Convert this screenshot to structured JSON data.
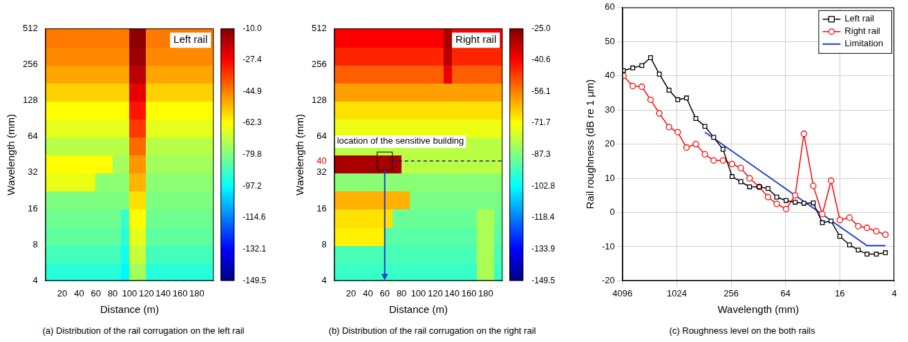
{
  "chart_data": [
    {
      "type": "heatmap",
      "title": "Left rail",
      "caption": "(a) Distribution of the rail corrugation on the left rail",
      "x_label": "Distance (m)",
      "y_label": "Wavelength (mm)",
      "log": "y",
      "xlim": [
        0,
        200
      ],
      "xticks": [
        20,
        40,
        60,
        80,
        100,
        120,
        140,
        160,
        180
      ],
      "ylim": [
        4,
        512
      ],
      "yticks": [
        4,
        8,
        16,
        32,
        64,
        128,
        256,
        512
      ],
      "x_bins": [
        0,
        10,
        20,
        30,
        40,
        50,
        60,
        70,
        80,
        90,
        100,
        110,
        120,
        130,
        140,
        150,
        160,
        170,
        180,
        190,
        200
      ],
      "y_bins": [
        4,
        5.66,
        8,
        11.31,
        16,
        22.63,
        32,
        45.25,
        64,
        90.51,
        128,
        181.02,
        256,
        362.04,
        512
      ],
      "cells": [
        [
          -92,
          -92,
          -92,
          -92,
          -92,
          -92,
          -92,
          -92,
          -92,
          -98,
          -75,
          -75,
          -92,
          -92,
          -92,
          -92,
          -92,
          -92,
          -92,
          -92
        ],
        [
          -88,
          -88,
          -88,
          -88,
          -88,
          -88,
          -88,
          -88,
          -88,
          -95,
          -70,
          -70,
          -88,
          -88,
          -88,
          -88,
          -88,
          -88,
          -88,
          -88
        ],
        [
          -84,
          -84,
          -84,
          -84,
          -84,
          -84,
          -84,
          -84,
          -84,
          -92,
          -66,
          -66,
          -84,
          -84,
          -84,
          -84,
          -84,
          -84,
          -84,
          -84
        ],
        [
          -82,
          -82,
          -82,
          -82,
          -82,
          -82,
          -82,
          -82,
          -82,
          -90,
          -62,
          -62,
          -82,
          -82,
          -82,
          -82,
          -82,
          -82,
          -82,
          -82
        ],
        [
          -80,
          -80,
          -80,
          -80,
          -80,
          -80,
          -80,
          -80,
          -80,
          -80,
          -58,
          -58,
          -80,
          -80,
          -80,
          -80,
          -80,
          -80,
          -80,
          -80
        ],
        [
          -65,
          -65,
          -65,
          -65,
          -65,
          -65,
          -78,
          -78,
          -78,
          -78,
          -52,
          -52,
          -78,
          -78,
          -78,
          -78,
          -78,
          -78,
          -78,
          -78
        ],
        [
          -62,
          -62,
          -62,
          -62,
          -62,
          -62,
          -62,
          -62,
          -75,
          -75,
          -48,
          -48,
          -75,
          -75,
          -75,
          -75,
          -75,
          -75,
          -75,
          -75
        ],
        [
          -72,
          -72,
          -72,
          -72,
          -72,
          -72,
          -72,
          -72,
          -72,
          -72,
          -42,
          -42,
          -72,
          -72,
          -72,
          -72,
          -72,
          -72,
          -72,
          -72
        ],
        [
          -66,
          -66,
          -66,
          -66,
          -66,
          -66,
          -66,
          -66,
          -66,
          -66,
          -35,
          -35,
          -66,
          -66,
          -66,
          -66,
          -66,
          -66,
          -66,
          -66
        ],
        [
          -62,
          -62,
          -62,
          -62,
          -62,
          -62,
          -62,
          -62,
          -62,
          -62,
          -30,
          -30,
          -62,
          -62,
          -62,
          -62,
          -62,
          -62,
          -62,
          -62
        ],
        [
          -56,
          -56,
          -56,
          -56,
          -56,
          -56,
          -56,
          -56,
          -56,
          -56,
          -24,
          -24,
          -56,
          -56,
          -56,
          -56,
          -56,
          -56,
          -56,
          -56
        ],
        [
          -50,
          -50,
          -50,
          -50,
          -50,
          -50,
          -50,
          -50,
          -50,
          -50,
          -18,
          -18,
          -50,
          -50,
          -50,
          -50,
          -50,
          -50,
          -50,
          -50
        ],
        [
          -46,
          -46,
          -46,
          -46,
          -46,
          -46,
          -46,
          -46,
          -46,
          -46,
          -14,
          -14,
          -46,
          -46,
          -46,
          -46,
          -46,
          -46,
          -46,
          -46
        ],
        [
          -44,
          -44,
          -44,
          -44,
          -44,
          -44,
          -44,
          -44,
          -44,
          -44,
          -12,
          -12,
          -44,
          -44,
          -44,
          -44,
          -44,
          -44,
          -44,
          -44
        ]
      ],
      "colorbar_range": [
        -149.5,
        -10
      ],
      "colorbar_ticks": [
        {
          "value": -10,
          "label": "-10.0"
        },
        -27.4,
        -44.9,
        -62.3,
        -79.8,
        -97.2,
        -114.6,
        -132.1,
        -149.5
      ]
    },
    {
      "type": "heatmap",
      "title": "Right rail",
      "caption": "(b) Distribution of the rail corrugation on the right rail",
      "x_label": "Distance (m)",
      "y_label": "Wavelength (mm)",
      "log": "y",
      "xlim": [
        0,
        200
      ],
      "xticks": [
        20,
        40,
        60,
        80,
        100,
        120,
        140,
        160,
        180
      ],
      "ylim": [
        4,
        512
      ],
      "yticks": [
        4,
        8,
        16,
        32,
        40,
        64,
        128,
        256,
        512
      ],
      "x_bins": [
        0,
        10,
        20,
        30,
        40,
        50,
        60,
        70,
        80,
        90,
        100,
        110,
        120,
        130,
        140,
        150,
        160,
        170,
        180,
        190,
        200
      ],
      "y_bins": [
        4,
        5.66,
        8,
        11.31,
        16,
        22.63,
        32,
        45.25,
        64,
        90.51,
        128,
        181.02,
        256,
        362.04,
        512
      ],
      "cells": [
        [
          -96,
          -96,
          -96,
          -96,
          -96,
          -96,
          -96,
          -96,
          -96,
          -96,
          -96,
          -96,
          -96,
          -96,
          -96,
          -96,
          -96,
          -82,
          -82,
          -96
        ],
        [
          -94,
          -94,
          -94,
          -94,
          -94,
          -94,
          -94,
          -94,
          -94,
          -94,
          -94,
          -94,
          -94,
          -94,
          -94,
          -94,
          -94,
          -82,
          -82,
          -94
        ],
        [
          -70,
          -70,
          -70,
          -70,
          -70,
          -70,
          -92,
          -92,
          -92,
          -92,
          -92,
          -92,
          -92,
          -92,
          -92,
          -92,
          -92,
          -82,
          -82,
          -92
        ],
        [
          -68,
          -68,
          -68,
          -68,
          -68,
          -68,
          -68,
          -90,
          -90,
          -90,
          -90,
          -90,
          -90,
          -90,
          -90,
          -90,
          -90,
          -82,
          -82,
          -90
        ],
        [
          -62,
          -62,
          -62,
          -62,
          -62,
          -62,
          -62,
          -62,
          -62,
          -88,
          -88,
          -88,
          -88,
          -88,
          -88,
          -88,
          -88,
          -88,
          -88,
          -88
        ],
        [
          -86,
          -86,
          -86,
          -86,
          -86,
          -86,
          -86,
          -86,
          -86,
          -86,
          -86,
          -86,
          -86,
          -86,
          -86,
          -86,
          -86,
          -86,
          -86,
          -86
        ],
        [
          -30,
          -30,
          -30,
          -30,
          -30,
          -30,
          -30,
          -30,
          -80,
          -80,
          -80,
          -80,
          -80,
          -80,
          -80,
          -80,
          -80,
          -80,
          -80,
          -80
        ],
        [
          -80,
          -80,
          -80,
          -80,
          -80,
          -80,
          -80,
          -80,
          -80,
          -80,
          -80,
          -80,
          -80,
          -80,
          -80,
          -80,
          -80,
          -80,
          -80,
          -80
        ],
        [
          -74,
          -74,
          -74,
          -74,
          -74,
          -74,
          -74,
          -74,
          -74,
          -74,
          -74,
          -74,
          -74,
          -74,
          -74,
          -74,
          -74,
          -74,
          -74,
          -74
        ],
        [
          -68,
          -68,
          -68,
          -68,
          -68,
          -68,
          -68,
          -68,
          -68,
          -68,
          -68,
          -68,
          -68,
          -68,
          -68,
          -68,
          -68,
          -68,
          -68,
          -68
        ],
        [
          -60,
          -60,
          -60,
          -60,
          -60,
          -60,
          -60,
          -60,
          -60,
          -60,
          -60,
          -60,
          -60,
          -60,
          -60,
          -60,
          -60,
          -60,
          -60,
          -60
        ],
        [
          -52,
          -52,
          -52,
          -52,
          -52,
          -52,
          -52,
          -52,
          -52,
          -52,
          -52,
          -52,
          -52,
          -38,
          -52,
          -52,
          -52,
          -52,
          -52,
          -52
        ],
        [
          -45,
          -45,
          -45,
          -45,
          -45,
          -45,
          -45,
          -45,
          -45,
          -45,
          -45,
          -45,
          -45,
          -32,
          -45,
          -45,
          -45,
          -45,
          -45,
          -45
        ],
        [
          -40,
          -40,
          -40,
          -40,
          -40,
          -40,
          -40,
          -40,
          -40,
          -40,
          -40,
          -40,
          -40,
          -30,
          -40,
          -40,
          -40,
          -40,
          -40,
          -40
        ]
      ],
      "colorbar_range": [
        -149.5,
        -25
      ],
      "colorbar_ticks": [
        {
          "value": -25,
          "label": "-25.0"
        },
        -40.6,
        -56.1,
        -71.7,
        -87.3,
        -102.8,
        -118.4,
        -133.9,
        -149.5
      ],
      "annotations": [
        {
          "text": "location of the sensitive building",
          "x": 60,
          "y": 40
        }
      ]
    },
    {
      "type": "line",
      "caption": "(c) Roughness level on the both rails",
      "x_label": "Wavelength (mm)",
      "y_label": "Rail roughness (dB re 1 μm)",
      "log": "x",
      "xlim": [
        4096,
        4
      ],
      "xticks": [
        4096,
        1024,
        256,
        64,
        16,
        4
      ],
      "ylim": [
        -20,
        60
      ],
      "yticks": [
        -20,
        -10,
        0,
        10,
        20,
        30,
        40,
        50,
        60
      ],
      "grid": true,
      "legend": "upper right",
      "series": [
        {
          "name": "Left rail",
          "color": "#000000",
          "marker": "square",
          "x": [
            4000,
            3150,
            2500,
            2000,
            1600,
            1250,
            1000,
            800,
            630,
            500,
            400,
            315,
            250,
            200,
            160,
            125,
            100,
            80,
            63,
            50,
            40,
            31.5,
            25,
            20,
            16,
            12.5,
            10,
            8,
            6.3,
            5
          ],
          "values": [
            41.5,
            42.3,
            43,
            45.3,
            40.5,
            35.8,
            33,
            33.5,
            27.5,
            25.2,
            22,
            18.5,
            10.5,
            9,
            7.5,
            7.5,
            7,
            4.5,
            3.5,
            3,
            2.7,
            2.8,
            -3,
            -2.5,
            -7,
            -9.5,
            -11,
            -12.2,
            -12.2,
            -11.8
          ]
        },
        {
          "name": "Right rail",
          "color": "#ff0000",
          "marker": "circle",
          "x": [
            4000,
            3150,
            2500,
            2000,
            1600,
            1250,
            1000,
            800,
            630,
            500,
            400,
            315,
            250,
            200,
            160,
            125,
            100,
            80,
            63,
            50,
            40,
            31.5,
            25,
            20,
            16,
            12.5,
            10,
            8,
            6.3,
            5
          ],
          "values": [
            40,
            37,
            36.8,
            33,
            29,
            25,
            23.5,
            19,
            20,
            17,
            15.2,
            15.2,
            14.2,
            13,
            10,
            7.5,
            4.5,
            2.5,
            1,
            5,
            23,
            7.8,
            -0.5,
            9.3,
            -2.2,
            -1.5,
            -4,
            -4.5,
            -5.5,
            -6.5
          ]
        },
        {
          "name": "Limitation",
          "color": "#1f3fd0",
          "marker": "none",
          "x": [
            500,
            8,
            5
          ],
          "values": [
            23.5,
            -9.7,
            -9.7
          ]
        }
      ]
    }
  ]
}
